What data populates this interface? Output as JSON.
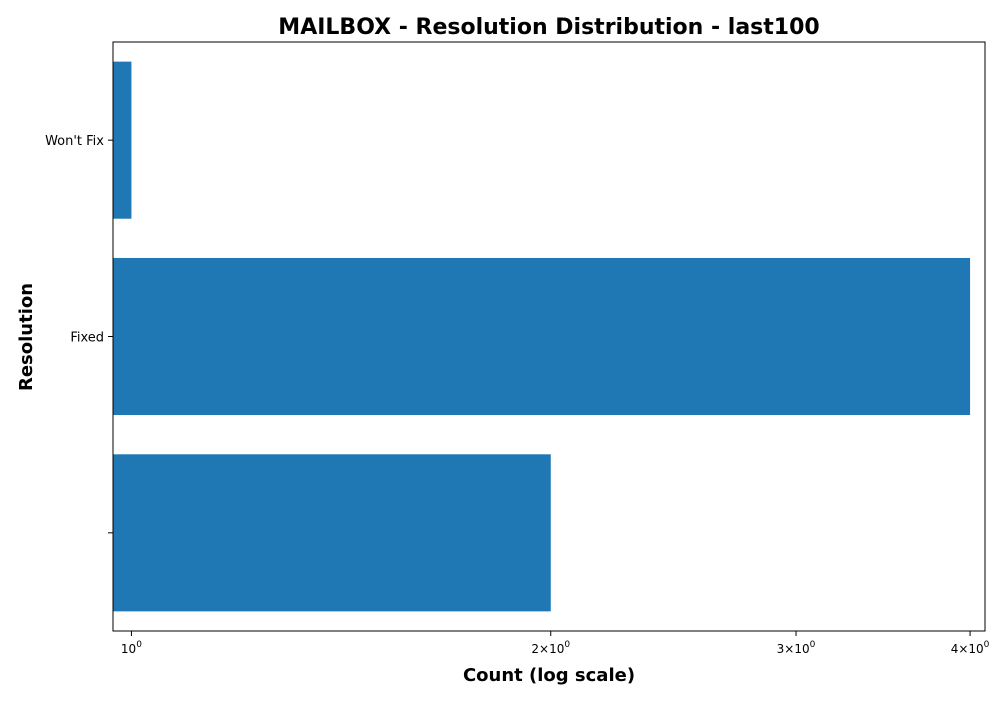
{
  "chart_data": {
    "type": "bar",
    "orientation": "horizontal",
    "title": "MAILBOX - Resolution Distribution - last100",
    "xlabel": "Count (log scale)",
    "ylabel": "Resolution",
    "x_scale": "log",
    "xlim": [
      0.97,
      4.1
    ],
    "x_ticks": [
      {
        "value": 1,
        "label": "10",
        "exp": "0",
        "prefix": ""
      },
      {
        "value": 2,
        "label": "2×10",
        "exp": "0",
        "prefix": "2×"
      },
      {
        "value": 3,
        "label": "3×10",
        "exp": "0",
        "prefix": "3×"
      },
      {
        "value": 4,
        "label": "4×10",
        "exp": "0",
        "prefix": "4×"
      }
    ],
    "categories": [
      "Won't Fix",
      "Fixed",
      ""
    ],
    "values": [
      1,
      4,
      2
    ],
    "bar_color": "#1f77b4",
    "grid": false,
    "legend": "none"
  }
}
